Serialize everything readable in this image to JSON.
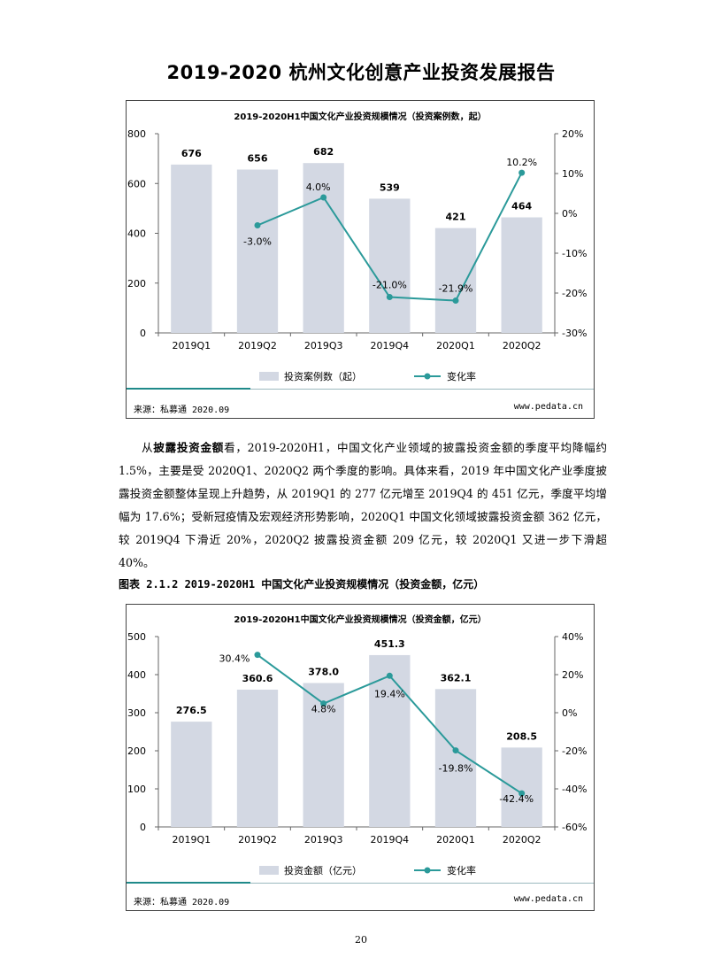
{
  "page": {
    "title": "2019-2020 杭州文化创意产业投资发展报告",
    "paragraph_lead": "从",
    "paragraph_bold": "披露投资金额",
    "paragraph_rest": "看，2019-2020H1，中国文化产业领域的披露投资金额的季度平均降幅约 1.5%，主要是受 2020Q1、2020Q2 两个季度的影响。具体来看，2019 年中国文化产业季度披露投资金额整体呈现上升趋势，从 2019Q1 的 277 亿元增至 2019Q4 的 451 亿元，季度平均增幅为 17.6%；受新冠疫情及宏观经济形势影响，2020Q1 中国文化领域披露投资金额 362 亿元，较 2019Q4 下滑近 20%，2020Q2 披露投资金额 209 亿元，较 2020Q1 又进一步下滑超 40%。",
    "figure_caption": "图表 2.1.2  2019-2020H1 中国文化产业投资规模情况（投资金额，亿元）",
    "page_number": "20"
  },
  "colors": {
    "bar": "#d3d8e3",
    "line": "#2b9a9a",
    "axis": "#666666"
  },
  "chart_data": [
    {
      "type": "bar",
      "title": "2019-2020H1中国文化产业投资规模情况（投资案例数，起）",
      "categories": [
        "2019Q1",
        "2019Q2",
        "2019Q3",
        "2019Q4",
        "2020Q1",
        "2020Q2"
      ],
      "series": [
        {
          "name": "投资案例数（起）",
          "type": "bar",
          "axis": "left",
          "values": [
            676,
            656,
            682,
            539,
            421,
            464
          ],
          "labels": [
            "676",
            "656",
            "682",
            "539",
            "421",
            "464"
          ]
        },
        {
          "name": "变化率",
          "type": "line",
          "axis": "right",
          "values": [
            null,
            -3.0,
            4.0,
            -21.0,
            -21.9,
            10.2
          ],
          "labels": [
            "",
            "-3.0%",
            "4.0%",
            "-21.0%",
            "-21.9%",
            "10.2%"
          ]
        }
      ],
      "ylim": [
        0,
        800
      ],
      "yticks": [
        "0",
        "200",
        "400",
        "600",
        "800"
      ],
      "y2lim": [
        -30,
        20
      ],
      "y2ticks": [
        "-30%",
        "-20%",
        "-10%",
        "0%",
        "10%",
        "20%"
      ],
      "legend_position": "bottom",
      "source": "来源：私募通 2020.09",
      "site": "www.pedata.cn"
    },
    {
      "type": "bar",
      "title": "2019-2020H1中国文化产业投资规模情况（投资金额，亿元）",
      "categories": [
        "2019Q1",
        "2019Q2",
        "2019Q3",
        "2019Q4",
        "2020Q1",
        "2020Q2"
      ],
      "series": [
        {
          "name": "投资金额（亿元）",
          "type": "bar",
          "axis": "left",
          "values": [
            276.5,
            360.6,
            378.0,
            451.3,
            362.1,
            208.5
          ],
          "labels": [
            "276.5",
            "360.6",
            "378.0",
            "451.3",
            "362.1",
            "208.5"
          ]
        },
        {
          "name": "变化率",
          "type": "line",
          "axis": "right",
          "values": [
            null,
            30.4,
            4.8,
            19.4,
            -19.8,
            -42.4
          ],
          "labels": [
            "",
            "30.4%",
            "4.8%",
            "19.4%",
            "-19.8%",
            "-42.4%"
          ]
        }
      ],
      "ylim": [
        0,
        500
      ],
      "yticks": [
        "0",
        "100",
        "200",
        "300",
        "400",
        "500"
      ],
      "y2lim": [
        -60,
        40
      ],
      "y2ticks": [
        "-60%",
        "-40%",
        "-20%",
        "0%",
        "20%",
        "40%"
      ],
      "legend_position": "bottom",
      "source": "来源：私募通 2020.09",
      "site": "www.pedata.cn"
    }
  ]
}
